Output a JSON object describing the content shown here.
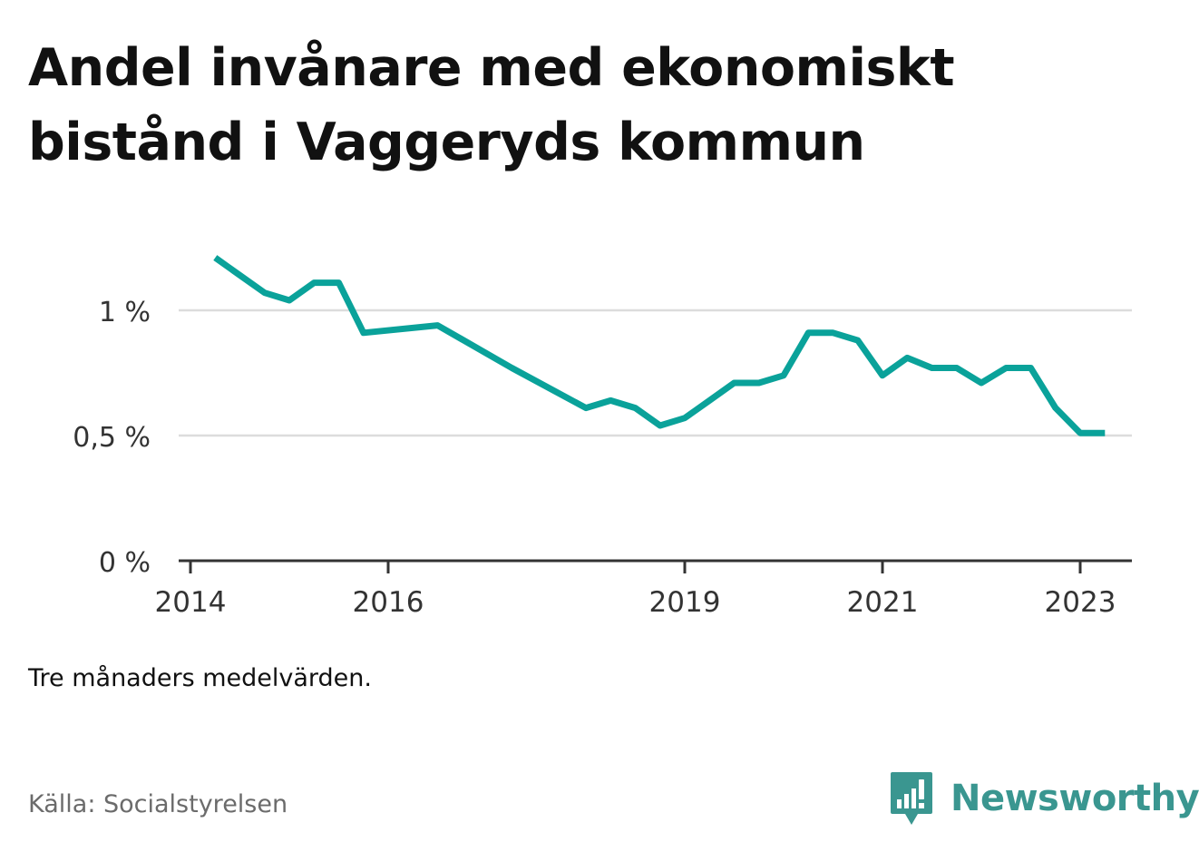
{
  "title": "Andel invånare med ekonomiskt bistånd i Vaggeryds kommun",
  "note": "Tre månaders medelvärden.",
  "source": "Källa: Socialstyrelsen",
  "brand": {
    "name": "Newsworthy",
    "icon": "bar-chart-speech-bubble-icon",
    "color": "#3a9690"
  },
  "chart_data": {
    "type": "line",
    "title": "Andel invånare med ekonomiskt bistånd i Vaggeryds kommun",
    "xlabel": "",
    "ylabel": "",
    "x_ticks": [
      "2014",
      "2016",
      "2019",
      "2021",
      "2023"
    ],
    "y_ticks": [
      "0 %",
      "0,5 %",
      "1 %"
    ],
    "y_tick_values": [
      0,
      0.5,
      1.0
    ],
    "ylim": [
      0,
      1.3
    ],
    "grid": true,
    "line_color": "#0aa29a",
    "series": [
      {
        "name": "",
        "points": [
          {
            "x": "2014-04",
            "y": 1.21
          },
          {
            "x": "2014-07",
            "y": 1.14
          },
          {
            "x": "2014-10",
            "y": 1.07
          },
          {
            "x": "2015-01",
            "y": 1.04
          },
          {
            "x": "2015-04",
            "y": 1.11
          },
          {
            "x": "2015-07",
            "y": 1.11
          },
          {
            "x": "2015-10",
            "y": 0.91
          },
          {
            "x": "2016-07",
            "y": 0.94
          },
          {
            "x": "2017-04",
            "y": 0.77
          },
          {
            "x": "2018-01",
            "y": 0.61
          },
          {
            "x": "2018-04",
            "y": 0.64
          },
          {
            "x": "2018-07",
            "y": 0.61
          },
          {
            "x": "2018-10",
            "y": 0.54
          },
          {
            "x": "2019-01",
            "y": 0.57
          },
          {
            "x": "2019-04",
            "y": 0.64
          },
          {
            "x": "2019-07",
            "y": 0.71
          },
          {
            "x": "2019-10",
            "y": 0.71
          },
          {
            "x": "2020-01",
            "y": 0.74
          },
          {
            "x": "2020-04",
            "y": 0.91
          },
          {
            "x": "2020-07",
            "y": 0.91
          },
          {
            "x": "2020-10",
            "y": 0.88
          },
          {
            "x": "2021-01",
            "y": 0.74
          },
          {
            "x": "2021-04",
            "y": 0.81
          },
          {
            "x": "2021-07",
            "y": 0.77
          },
          {
            "x": "2021-10",
            "y": 0.77
          },
          {
            "x": "2022-01",
            "y": 0.71
          },
          {
            "x": "2022-04",
            "y": 0.77
          },
          {
            "x": "2022-07",
            "y": 0.77
          },
          {
            "x": "2022-10",
            "y": 0.61
          },
          {
            "x": "2023-01",
            "y": 0.51
          },
          {
            "x": "2023-04",
            "y": 0.51
          }
        ]
      }
    ]
  }
}
